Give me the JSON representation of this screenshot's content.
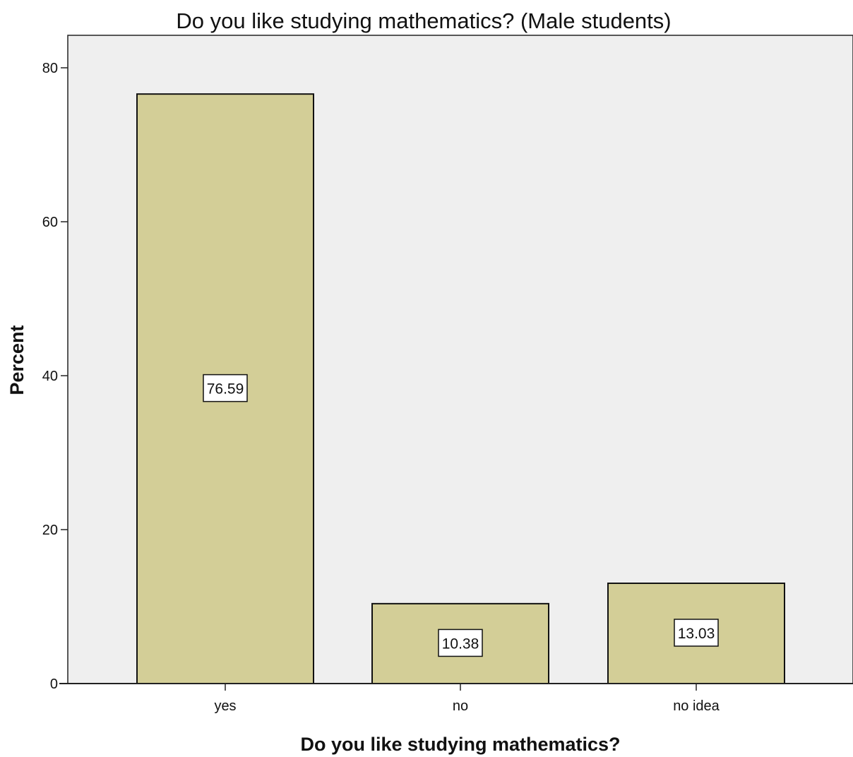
{
  "chart_data": {
    "type": "bar",
    "title": "Do you like studying mathematics? (Male students)",
    "xlabel": "Do you like studying mathematics?",
    "ylabel": "Percent",
    "categories": [
      "yes",
      "no",
      "no idea"
    ],
    "values": [
      76.59,
      10.38,
      13.03
    ],
    "data_labels": [
      "76.59",
      "10.38",
      "13.03"
    ],
    "ylim": [
      0,
      80
    ],
    "yticks": [
      "0",
      "20",
      "40",
      "60",
      "80"
    ],
    "grid": false,
    "legend": "none",
    "colors": {
      "bar_fill": "#d3ce97",
      "bar_stroke": "#111111",
      "plot_background": "#efefef",
      "label_box": "#ffffff"
    }
  }
}
